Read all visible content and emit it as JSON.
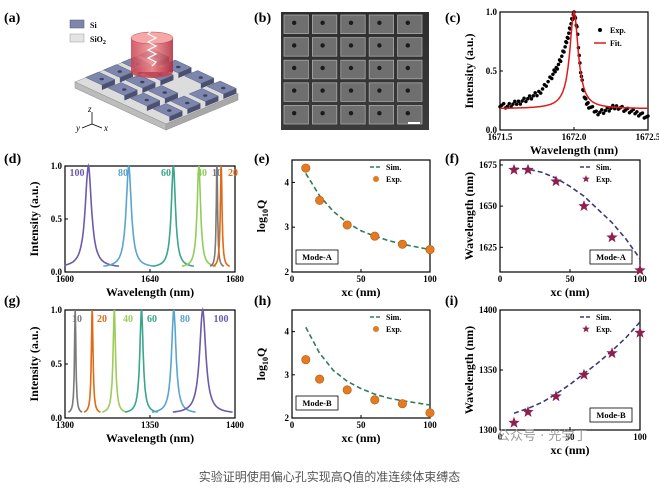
{
  "panels": {
    "a": {
      "label": "(a)",
      "legend": [
        {
          "name": "Si",
          "color": "#7d87ad"
        },
        {
          "name": "SiO",
          "sub": "2",
          "color": "#e4e4e4"
        }
      ],
      "axes": {
        "z": "z",
        "y": "y",
        "x": "x"
      }
    },
    "b": {
      "label": "(b)"
    },
    "c": {
      "label": "(c)"
    },
    "d": {
      "label": "(d)"
    },
    "e": {
      "label": "(e)"
    },
    "f": {
      "label": "(f)"
    },
    "g": {
      "label": "(g)"
    },
    "h": {
      "label": "(h)"
    },
    "i": {
      "label": "(i)"
    }
  },
  "chart_data": [
    {
      "id": "c",
      "type": "scatter",
      "xlabel": "Wavelength (nm)",
      "ylabel": "Intensity (a.u.)",
      "xlim": [
        1671.5,
        1672.5
      ],
      "ylim": [
        0,
        1
      ],
      "xticks": [
        "1671.5",
        "1672.0",
        "1672.5"
      ],
      "yticks": [
        "0.0",
        "0.5",
        "1.0"
      ],
      "legend": [
        "Exp.",
        "Fit."
      ],
      "series": [
        {
          "name": "Exp.",
          "color": "#000000",
          "x": [
            1671.5,
            1671.55,
            1671.6,
            1671.65,
            1671.7,
            1671.75,
            1671.8,
            1671.85,
            1671.88,
            1671.91,
            1671.94,
            1671.96,
            1671.98,
            1672.0,
            1672.02,
            1672.04,
            1672.06,
            1672.08,
            1672.1,
            1672.15,
            1672.2,
            1672.25,
            1672.3,
            1672.35,
            1672.4,
            1672.45,
            1672.5
          ],
          "y": [
            0.22,
            0.2,
            0.22,
            0.25,
            0.27,
            0.3,
            0.37,
            0.45,
            0.52,
            0.6,
            0.7,
            0.8,
            0.9,
            1.0,
            0.88,
            0.55,
            0.35,
            0.25,
            0.2,
            0.15,
            0.16,
            0.18,
            0.2,
            0.17,
            0.15,
            0.14,
            0.1
          ]
        },
        {
          "name": "Fit.",
          "color": "#e01b1b",
          "lorentz": {
            "x0": 1672.0,
            "w": 0.035,
            "base": 0.18
          }
        }
      ]
    },
    {
      "id": "d",
      "type": "line",
      "xlabel": "Wavelength (nm)",
      "ylabel": "Intensity (a.u.)",
      "xlim": [
        1600,
        1680
      ],
      "ylim": [
        0,
        1
      ],
      "xticks": [
        "1600",
        "1640",
        "1680"
      ],
      "yticks": [
        "0.0",
        "0.5",
        "1.0"
      ],
      "series": [
        {
          "name": "100",
          "color": "#6d5aa8",
          "x0": 1611,
          "w": 1.8
        },
        {
          "name": "80",
          "color": "#5aa4d0",
          "x0": 1630,
          "w": 1.5
        },
        {
          "name": "60",
          "color": "#3aa68a",
          "x0": 1651,
          "w": 1.2
        },
        {
          "name": "40",
          "color": "#8fce5a",
          "x0": 1663,
          "w": 1.0
        },
        {
          "name": "10",
          "color": "#7a7a7a",
          "x0": 1671.5,
          "w": 0.4
        },
        {
          "name": "20",
          "color": "#e06a16",
          "x0": 1673.5,
          "w": 0.5
        }
      ]
    },
    {
      "id": "e",
      "type": "scatter",
      "xlabel": "xc (nm)",
      "ylabel": "log10Q",
      "xlim": [
        0,
        100
      ],
      "ylim": [
        2,
        4.5
      ],
      "xticks": [
        "0",
        "50",
        "100"
      ],
      "yticks": [
        "2",
        "3",
        "4"
      ],
      "legend": [
        "Sim.",
        "Exp."
      ],
      "mode_label": "Mode-A",
      "sim": {
        "x": [
          10,
          20,
          30,
          40,
          50,
          60,
          70,
          80,
          90,
          100
        ],
        "y": [
          4.2,
          3.7,
          3.35,
          3.1,
          2.92,
          2.8,
          2.7,
          2.62,
          2.56,
          2.5
        ]
      },
      "exp": {
        "x": [
          10,
          20,
          40,
          60,
          80,
          100
        ],
        "y": [
          4.32,
          3.6,
          3.05,
          2.8,
          2.62,
          2.5
        ]
      }
    },
    {
      "id": "f",
      "type": "scatter",
      "xlabel": "xc (nm)",
      "ylabel": "Wavelength (nm)",
      "xlim": [
        0,
        100
      ],
      "ylim": [
        1610,
        1678
      ],
      "xticks": [
        "0",
        "50",
        "100"
      ],
      "yticks": [
        "1625",
        "1650",
        "1675"
      ],
      "legend": [
        "Sim.",
        "Exp."
      ],
      "mode_label": "Mode-A",
      "sim": {
        "x": [
          10,
          20,
          30,
          40,
          50,
          60,
          70,
          80,
          90,
          100
        ],
        "y": [
          1673,
          1672.5,
          1670.5,
          1667,
          1662,
          1656,
          1648,
          1640,
          1630,
          1618
        ]
      },
      "exp": {
        "x": [
          10,
          20,
          40,
          60,
          80,
          100
        ],
        "y": [
          1672,
          1672,
          1665,
          1650,
          1631,
          1611
        ]
      }
    },
    {
      "id": "g",
      "type": "line",
      "xlabel": "Wavelength (nm)",
      "ylabel": "Intensity (a.u.)",
      "xlim": [
        1300,
        1400
      ],
      "ylim": [
        0,
        1
      ],
      "xticks": [
        "1300",
        "1350",
        "1400"
      ],
      "yticks": [
        "0.0",
        "0.5",
        "1.0"
      ],
      "series": [
        {
          "name": "10",
          "color": "#7a7a7a",
          "x0": 1306,
          "w": 0.5
        },
        {
          "name": "20",
          "color": "#e06a16",
          "x0": 1316,
          "w": 0.6
        },
        {
          "name": "40",
          "color": "#9ecc5a",
          "x0": 1329,
          "w": 0.9
        },
        {
          "name": "60",
          "color": "#3aa68a",
          "x0": 1345,
          "w": 1.2
        },
        {
          "name": "80",
          "color": "#5aa4d0",
          "x0": 1364,
          "w": 1.6
        },
        {
          "name": "100",
          "color": "#6d5aa8",
          "x0": 1381,
          "w": 2.2
        }
      ]
    },
    {
      "id": "h",
      "type": "scatter",
      "xlabel": "xc (nm)",
      "ylabel": "log10Q",
      "xlim": [
        0,
        100
      ],
      "ylim": [
        2,
        4.5
      ],
      "xticks": [
        "0",
        "50",
        "100"
      ],
      "yticks": [
        "2",
        "3",
        "4"
      ],
      "legend": [
        "Sim.",
        "Exp."
      ],
      "mode_label": "Mode-B",
      "sim": {
        "x": [
          10,
          20,
          30,
          40,
          50,
          60,
          70,
          80,
          90,
          100
        ],
        "y": [
          4.1,
          3.5,
          3.1,
          2.85,
          2.68,
          2.55,
          2.46,
          2.4,
          2.35,
          2.3
        ]
      },
      "exp": {
        "x": [
          10,
          20,
          40,
          60,
          80,
          100
        ],
        "y": [
          3.35,
          2.9,
          2.65,
          2.42,
          2.33,
          2.12
        ]
      }
    },
    {
      "id": "i",
      "type": "scatter",
      "xlabel": "xc (nm)",
      "ylabel": "Wavelength (nm)",
      "xlim": [
        0,
        100
      ],
      "ylim": [
        1300,
        1400
      ],
      "xticks": [
        "0",
        "50",
        "100"
      ],
      "yticks": [
        "1300",
        "1350",
        "1400"
      ],
      "legend": [
        "Sim.",
        "Exp."
      ],
      "mode_label": "Mode-B",
      "sim": {
        "x": [
          10,
          20,
          30,
          40,
          50,
          60,
          70,
          80,
          90,
          100
        ],
        "y": [
          1314,
          1318,
          1323,
          1330,
          1338,
          1347,
          1356,
          1366,
          1377,
          1390
        ]
      },
      "exp": {
        "x": [
          10,
          20,
          40,
          60,
          80,
          100
        ],
        "y": [
          1306,
          1315,
          1328,
          1346,
          1364,
          1381
        ]
      }
    }
  ],
  "caption": "实验证明使用偏心孔实现高Q值的准连续体束缚态",
  "watermark": "公众号 · 光学丁"
}
